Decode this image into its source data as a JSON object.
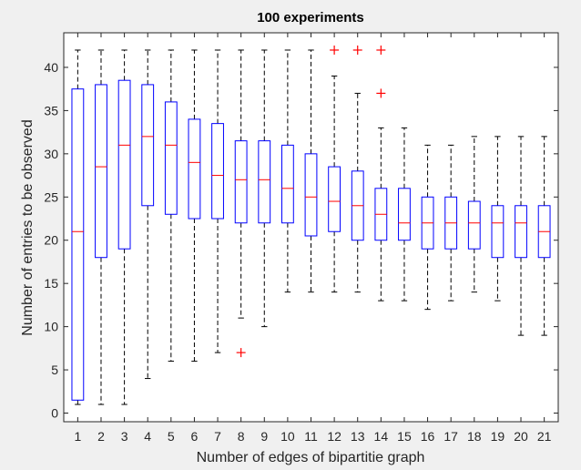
{
  "chart_data": {
    "type": "boxplot",
    "title": "100 experiments",
    "xlabel": "Number of edges of bipartitie graph",
    "ylabel": "Number of entries to be observed",
    "ylim": [
      -1,
      44
    ],
    "yticks": [
      0,
      5,
      10,
      15,
      20,
      25,
      30,
      35,
      40
    ],
    "grid": false,
    "colors": {
      "box": "#0000ff",
      "median": "#ff0000",
      "whisker": "#000000",
      "outlier": "#ff0000",
      "axes_bg": "#ffffff",
      "figure_bg": "#f0f0f0"
    },
    "categories": [
      "1",
      "2",
      "3",
      "4",
      "5",
      "6",
      "7",
      "8",
      "9",
      "10",
      "11",
      "12",
      "13",
      "14",
      "15",
      "16",
      "17",
      "18",
      "19",
      "20",
      "21"
    ],
    "boxes": [
      {
        "min": 1,
        "q1": 1.5,
        "median": 21,
        "q3": 37.5,
        "max": 42,
        "outliers": []
      },
      {
        "min": 1,
        "q1": 18,
        "median": 28.5,
        "q3": 38,
        "max": 42,
        "outliers": []
      },
      {
        "min": 1,
        "q1": 19,
        "median": 31,
        "q3": 38.5,
        "max": 42,
        "outliers": []
      },
      {
        "min": 4,
        "q1": 24,
        "median": 32,
        "q3": 38,
        "max": 42,
        "outliers": []
      },
      {
        "min": 6,
        "q1": 23,
        "median": 31,
        "q3": 36,
        "max": 42,
        "outliers": []
      },
      {
        "min": 6,
        "q1": 22.5,
        "median": 29,
        "q3": 34,
        "max": 42,
        "outliers": []
      },
      {
        "min": 7,
        "q1": 22.5,
        "median": 27.5,
        "q3": 33.5,
        "max": 42,
        "outliers": []
      },
      {
        "min": 11,
        "q1": 22,
        "median": 27,
        "q3": 31.5,
        "max": 42,
        "outliers": [
          7
        ]
      },
      {
        "min": 10,
        "q1": 22,
        "median": 27,
        "q3": 31.5,
        "max": 42,
        "outliers": []
      },
      {
        "min": 14,
        "q1": 22,
        "median": 26,
        "q3": 31,
        "max": 42,
        "outliers": []
      },
      {
        "min": 14,
        "q1": 20.5,
        "median": 25,
        "q3": 30,
        "max": 42,
        "outliers": []
      },
      {
        "min": 14,
        "q1": 21,
        "median": 24.5,
        "q3": 28.5,
        "max": 39,
        "outliers": [
          42
        ]
      },
      {
        "min": 14,
        "q1": 20,
        "median": 24,
        "q3": 28,
        "max": 37,
        "outliers": [
          42
        ]
      },
      {
        "min": 13,
        "q1": 20,
        "median": 23,
        "q3": 26,
        "max": 33,
        "outliers": [
          37,
          42
        ]
      },
      {
        "min": 13,
        "q1": 20,
        "median": 22,
        "q3": 26,
        "max": 33,
        "outliers": []
      },
      {
        "min": 12,
        "q1": 19,
        "median": 22,
        "q3": 25,
        "max": 31,
        "outliers": []
      },
      {
        "min": 13,
        "q1": 19,
        "median": 22,
        "q3": 25,
        "max": 31,
        "outliers": []
      },
      {
        "min": 14,
        "q1": 19,
        "median": 22,
        "q3": 24.5,
        "max": 32,
        "outliers": []
      },
      {
        "min": 13,
        "q1": 18,
        "median": 22,
        "q3": 24,
        "max": 32,
        "outliers": []
      },
      {
        "min": 9,
        "q1": 18,
        "median": 22,
        "q3": 24,
        "max": 32,
        "outliers": []
      },
      {
        "min": 9,
        "q1": 18,
        "median": 21,
        "q3": 24,
        "max": 32,
        "outliers": []
      }
    ]
  }
}
